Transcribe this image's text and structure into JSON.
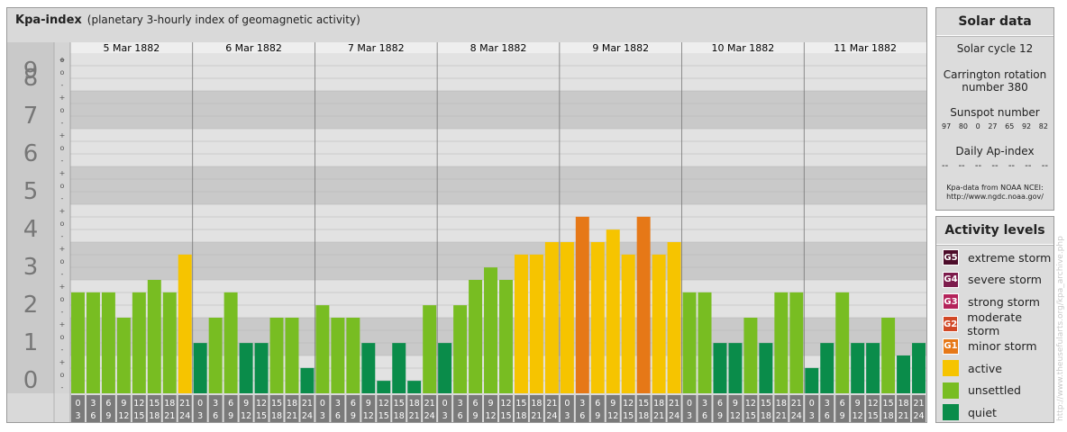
{
  "header": {
    "title": "Kpa-index",
    "subtitle": "(planetary 3-hourly index of geomagnetic activity)"
  },
  "colors": {
    "quiet": "#0a8c4a",
    "unsettled": "#78bd22",
    "active": "#f6c400",
    "minor_storm": "#e67817",
    "moderate_storm": "#d14826",
    "strong_storm": "#b4235a",
    "severe_storm": "#7d1c4c",
    "extreme_storm": "#4d0d2a"
  },
  "chart_data": {
    "type": "bar",
    "title": "Kpa-index",
    "ylim": [
      0,
      9
    ],
    "y_major_ticks": [
      "0",
      "1",
      "2",
      "3",
      "4",
      "5",
      "6",
      "7",
      "8",
      "9"
    ],
    "y_minor_labels": [
      "-",
      "o",
      "+"
    ],
    "hour_top": [
      "0",
      "3",
      "6",
      "9",
      "12",
      "15",
      "18",
      "21"
    ],
    "hour_bottom": [
      "3",
      "6",
      "9",
      "12",
      "15",
      "18",
      "21",
      "24"
    ],
    "days": [
      {
        "date": "5 Mar 1882",
        "values": [
          2.67,
          2.67,
          2.67,
          2.0,
          2.67,
          3.0,
          2.67,
          3.67
        ],
        "levels": [
          "unsettled",
          "unsettled",
          "unsettled",
          "unsettled",
          "unsettled",
          "unsettled",
          "unsettled",
          "active"
        ]
      },
      {
        "date": "6 Mar 1882",
        "values": [
          1.33,
          2.0,
          2.67,
          1.33,
          1.33,
          2.0,
          2.0,
          0.67
        ],
        "levels": [
          "quiet",
          "unsettled",
          "unsettled",
          "quiet",
          "quiet",
          "unsettled",
          "unsettled",
          "quiet"
        ]
      },
      {
        "date": "7 Mar 1882",
        "values": [
          2.33,
          2.0,
          2.0,
          1.33,
          0.33,
          1.33,
          0.33,
          2.33
        ],
        "levels": [
          "unsettled",
          "unsettled",
          "unsettled",
          "quiet",
          "quiet",
          "quiet",
          "quiet",
          "unsettled"
        ]
      },
      {
        "date": "8 Mar 1882",
        "values": [
          1.33,
          2.33,
          3.0,
          3.33,
          3.0,
          3.67,
          3.67,
          4.0
        ],
        "levels": [
          "quiet",
          "unsettled",
          "unsettled",
          "unsettled",
          "unsettled",
          "active",
          "active",
          "active"
        ]
      },
      {
        "date": "9 Mar 1882",
        "values": [
          4.0,
          4.67,
          4.0,
          4.33,
          3.67,
          4.67,
          3.67,
          4.0
        ],
        "levels": [
          "active",
          "minor_storm",
          "active",
          "active",
          "active",
          "minor_storm",
          "active",
          "active"
        ]
      },
      {
        "date": "10 Mar 1882",
        "values": [
          2.67,
          2.67,
          1.33,
          1.33,
          2.0,
          1.33,
          2.67,
          2.67
        ],
        "levels": [
          "unsettled",
          "unsettled",
          "quiet",
          "quiet",
          "unsettled",
          "quiet",
          "unsettled",
          "unsettled"
        ]
      },
      {
        "date": "11 Mar 1882",
        "values": [
          0.67,
          1.33,
          2.67,
          1.33,
          1.33,
          2.0,
          1.0,
          1.33
        ],
        "levels": [
          "quiet",
          "quiet",
          "unsettled",
          "quiet",
          "quiet",
          "unsettled",
          "quiet",
          "quiet"
        ]
      }
    ]
  },
  "solar": {
    "title": "Solar data",
    "cycle": "Solar cycle 12",
    "carrington_line1": "Carrington rotation",
    "carrington_line2": "number 380",
    "sunspot_title": "Sunspot number",
    "sunspots": [
      "97",
      "80",
      "0",
      "27",
      "65",
      "92",
      "82"
    ],
    "ap_title": "Daily Ap-index",
    "ap_values": [
      "--",
      "--",
      "--",
      "--",
      "--",
      "--",
      "--"
    ],
    "credit_line1": "Kpa-data from NOAA NCEI:",
    "credit_line2": "http://www.ngdc.noaa.gov/"
  },
  "activity": {
    "title": "Activity levels",
    "levels": [
      {
        "code": "G5",
        "label": "extreme storm",
        "color": "#4d0d2a"
      },
      {
        "code": "G4",
        "label": "severe storm",
        "color": "#7d1c4c"
      },
      {
        "code": "G3",
        "label": "strong storm",
        "color": "#b4235a"
      },
      {
        "code": "G2",
        "label": "moderate storm",
        "color": "#d14826"
      },
      {
        "code": "G1",
        "label": "minor storm",
        "color": "#e67817"
      },
      {
        "code": "",
        "label": "active",
        "color": "#f6c400"
      },
      {
        "code": "",
        "label": "unsettled",
        "color": "#78bd22"
      },
      {
        "code": "",
        "label": "quiet",
        "color": "#0a8c4a"
      }
    ]
  },
  "watermark": "http://www.theusefularts.org/kpa_archive.php"
}
